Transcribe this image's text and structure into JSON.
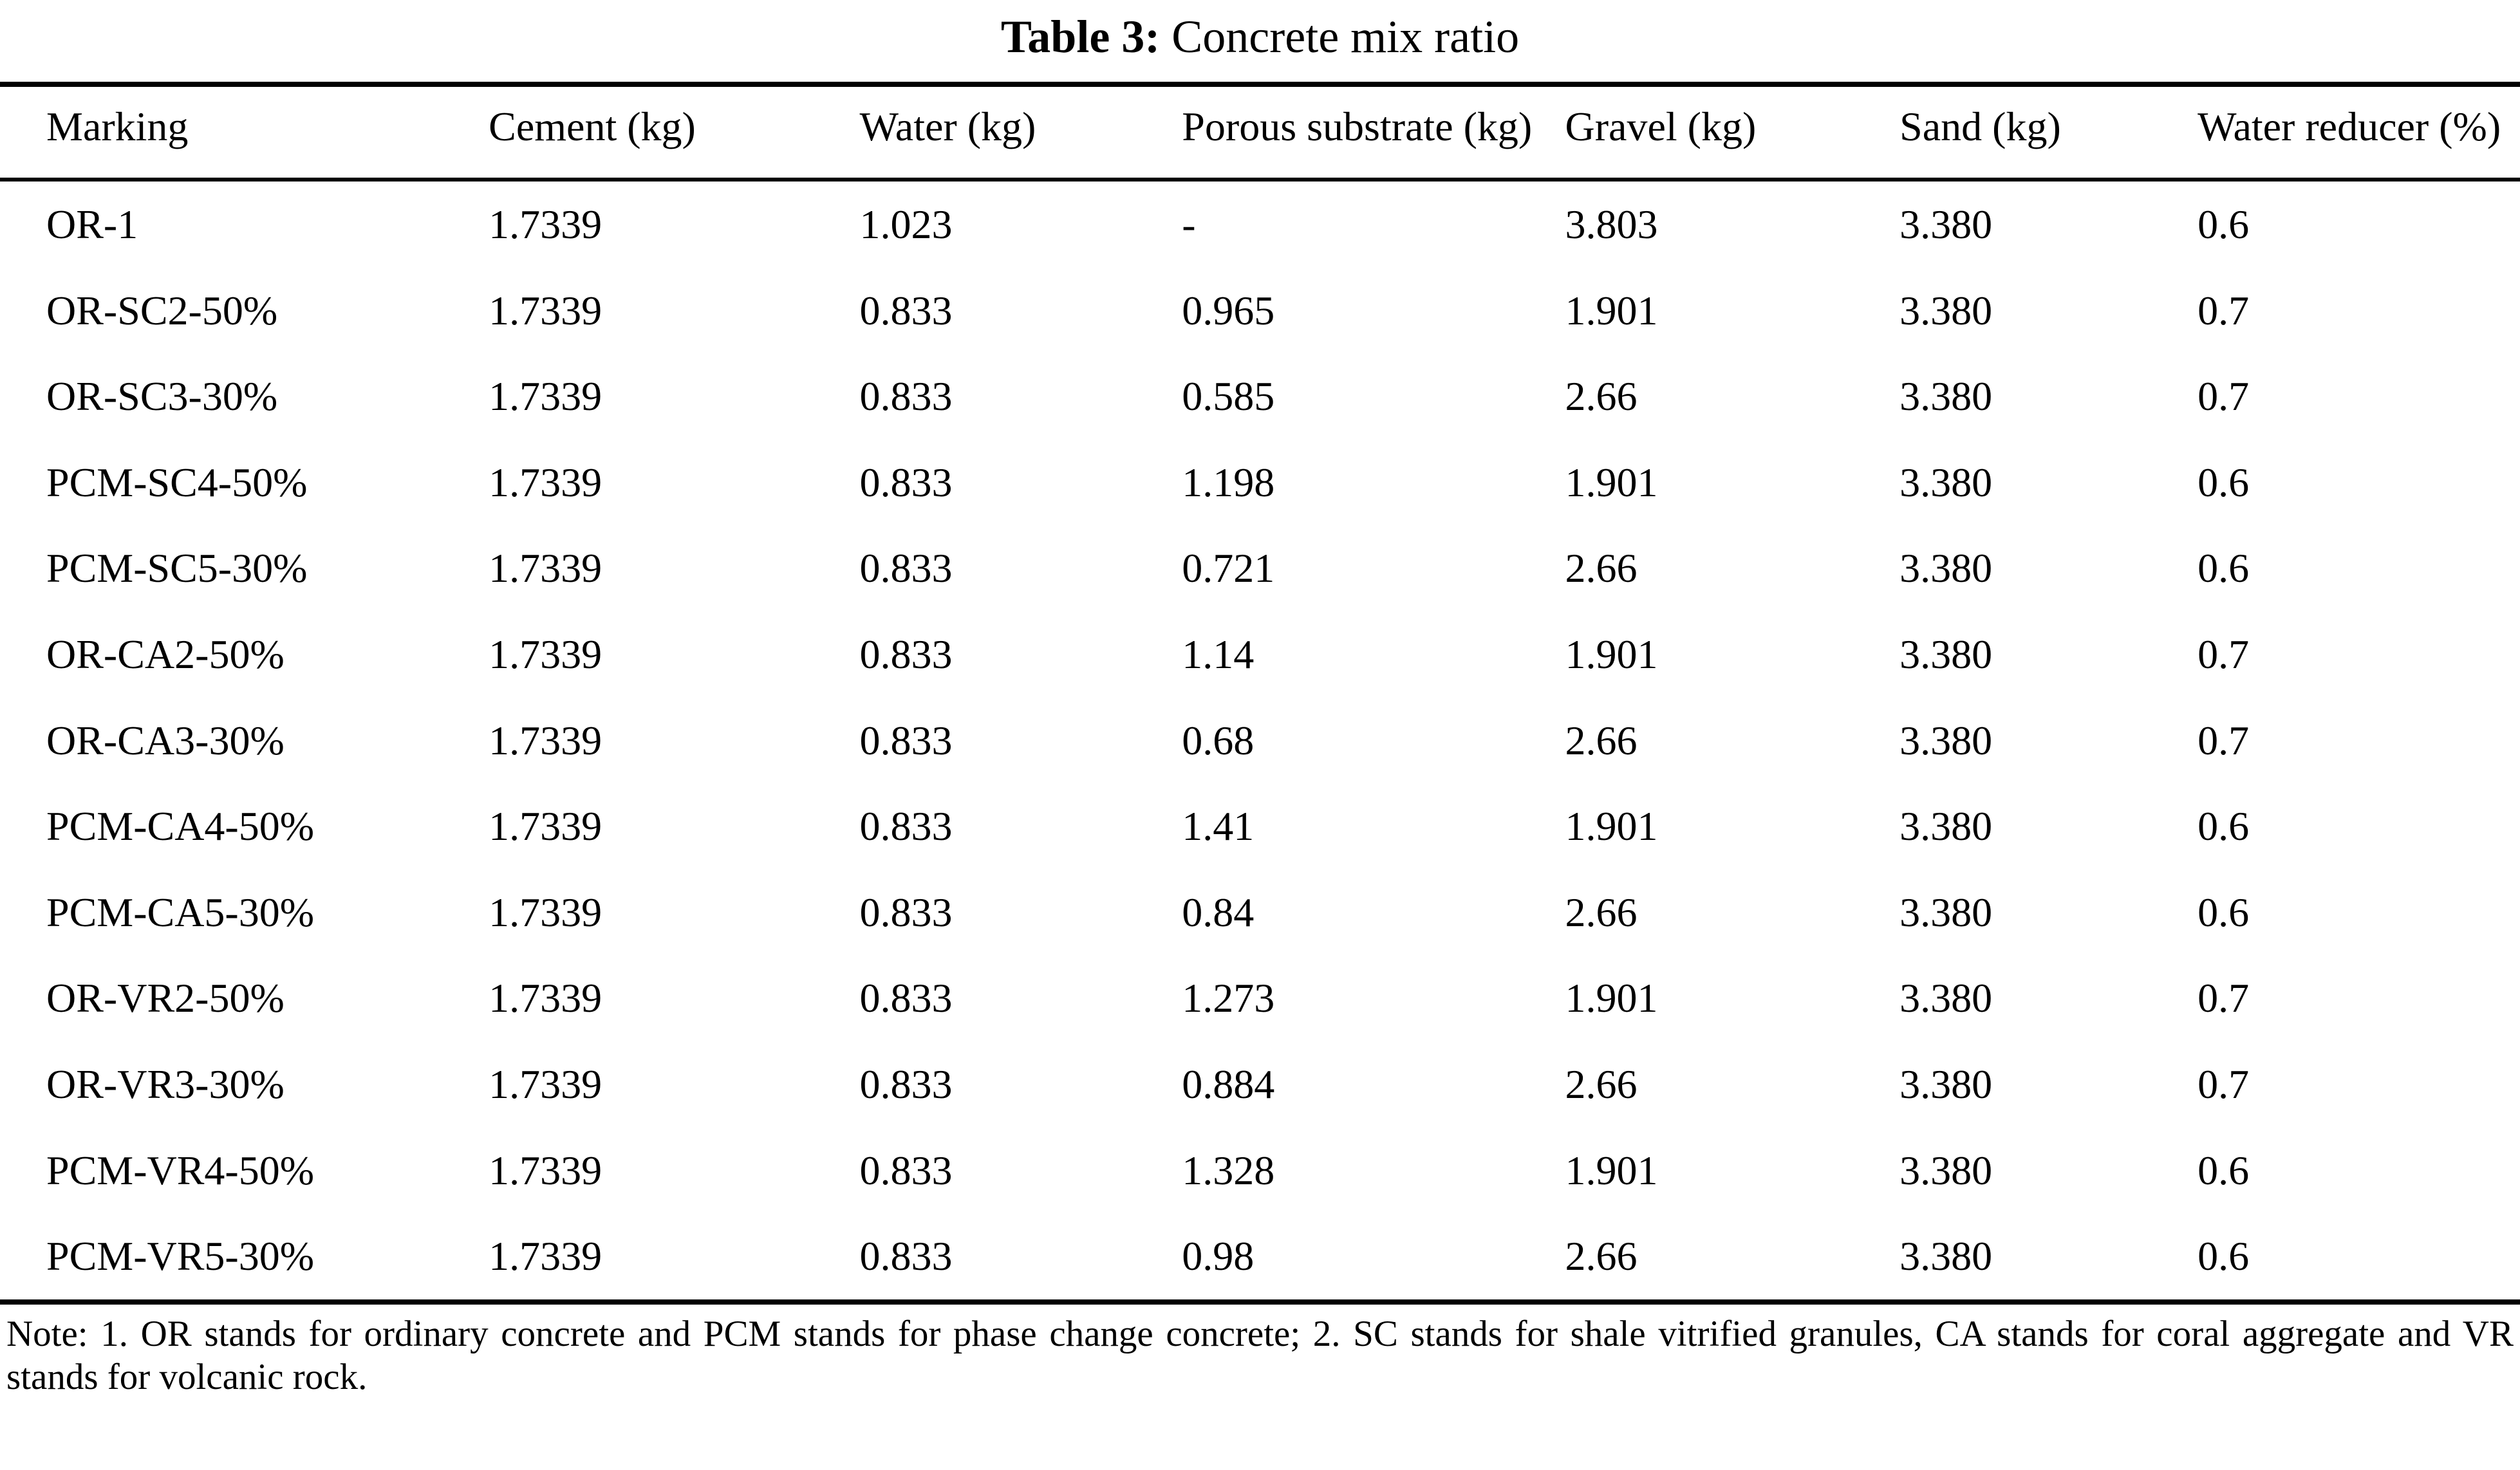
{
  "title": {
    "label": "Table 3:",
    "caption": "Concrete mix ratio"
  },
  "table": {
    "columns": [
      "Marking",
      "Cement (kg)",
      "Water (kg)",
      "Porous substrate (kg)",
      "Gravel (kg)",
      "Sand (kg)",
      "Water reducer (%)"
    ],
    "rows": [
      [
        "OR-1",
        "1.7339",
        "1.023",
        "-",
        "3.803",
        "3.380",
        "0.6"
      ],
      [
        "OR-SC2-50%",
        "1.7339",
        "0.833",
        "0.965",
        "1.901",
        "3.380",
        "0.7"
      ],
      [
        "OR-SC3-30%",
        "1.7339",
        "0.833",
        "0.585",
        "2.66",
        "3.380",
        "0.7"
      ],
      [
        "PCM-SC4-50%",
        "1.7339",
        "0.833",
        "1.198",
        "1.901",
        "3.380",
        "0.6"
      ],
      [
        "PCM-SC5-30%",
        "1.7339",
        "0.833",
        "0.721",
        "2.66",
        "3.380",
        "0.6"
      ],
      [
        "OR-CA2-50%",
        "1.7339",
        "0.833",
        "1.14",
        "1.901",
        "3.380",
        "0.7"
      ],
      [
        "OR-CA3-30%",
        "1.7339",
        "0.833",
        "0.68",
        "2.66",
        "3.380",
        "0.7"
      ],
      [
        "PCM-CA4-50%",
        "1.7339",
        "0.833",
        "1.41",
        "1.901",
        "3.380",
        "0.6"
      ],
      [
        "PCM-CA5-30%",
        "1.7339",
        "0.833",
        "0.84",
        "2.66",
        "3.380",
        "0.6"
      ],
      [
        "OR-VR2-50%",
        "1.7339",
        "0.833",
        "1.273",
        "1.901",
        "3.380",
        "0.7"
      ],
      [
        "OR-VR3-30%",
        "1.7339",
        "0.833",
        "0.884",
        "2.66",
        "3.380",
        "0.7"
      ],
      [
        "PCM-VR4-50%",
        "1.7339",
        "0.833",
        "1.328",
        "1.901",
        "3.380",
        "0.6"
      ],
      [
        "PCM-VR5-30%",
        "1.7339",
        "0.833",
        "0.98",
        "2.66",
        "3.380",
        "0.6"
      ]
    ]
  },
  "note": "Note: 1. OR stands for ordinary concrete and PCM stands for phase change concrete; 2. SC stands for shale vitrified granules, CA stands for coral aggregate and VR stands for volcanic rock."
}
